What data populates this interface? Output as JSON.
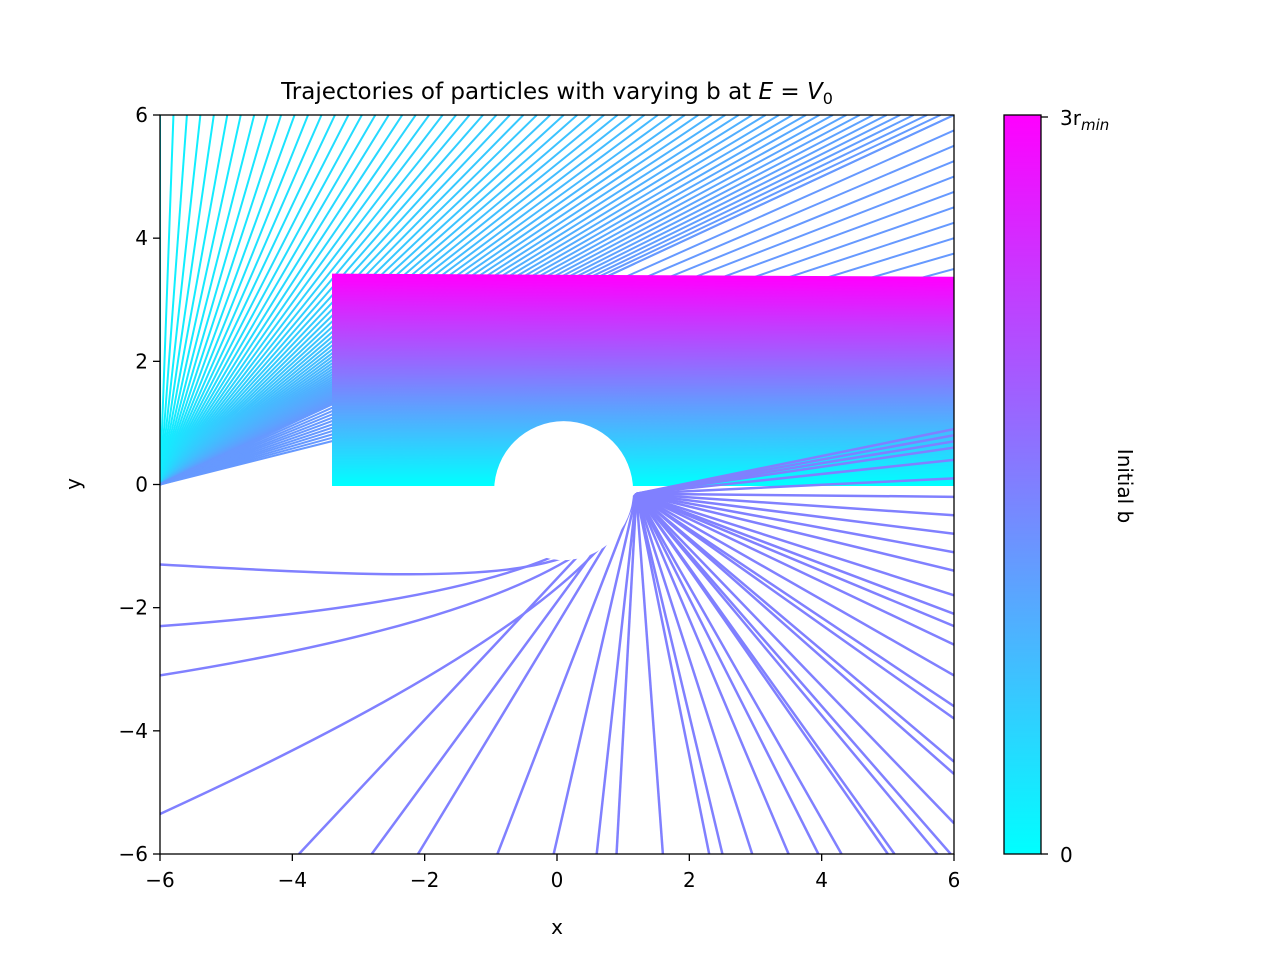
{
  "chart_data": {
    "type": "line",
    "title": "Trajectories of particles with varying b at E = V₀",
    "title_main": "Trajectories of particles with varying b at ",
    "title_math_E": "E",
    "title_math_eq": " = ",
    "title_math_V": "V",
    "title_math_sub": "0",
    "xlabel": "x",
    "ylabel": "y",
    "xlim": [
      -6,
      6
    ],
    "ylim": [
      -6,
      6
    ],
    "xticks": [
      -6,
      -4,
      -2,
      0,
      2,
      4,
      6
    ],
    "yticks": [
      -6,
      -4,
      -2,
      0,
      2,
      4,
      6
    ],
    "xtick_labels": [
      "−6",
      "−4",
      "−2",
      "0",
      "2",
      "4",
      "6"
    ],
    "ytick_labels": [
      "−6",
      "−4",
      "−2",
      "0",
      "2",
      "4",
      "6"
    ],
    "grid": false,
    "colormap": "cool",
    "colormap_colors": [
      "#00ffff",
      "#ff00ff"
    ],
    "colorbar": {
      "label": "Initial b",
      "min_label": "0",
      "max_label_main": "3r",
      "max_label_sub": "min",
      "range": [
        0,
        3.4
      ]
    },
    "incoming_region": {
      "x_start": -3.4,
      "x_end": 6,
      "b_min": 0,
      "b_max": 3.4,
      "bend_points": [
        [
          -1.0,
          0
        ],
        [
          1.4,
          3.35
        ]
      ]
    },
    "obstacle": {
      "center": [
        0.1,
        -0.1
      ],
      "radius": 1.05
    },
    "fan_center": [
      1.2,
      -0.15
    ],
    "upper_fan": {
      "origin": [
        -6,
        0
      ],
      "count": 60,
      "target_y": 6,
      "target_x_range": [
        -6,
        6
      ]
    },
    "lower_trajectories": {
      "curved": [
        {
          "y_left": -1.3
        },
        {
          "y_left": -2.3
        },
        {
          "y_left": -3.1
        },
        {
          "y_left": -5.35
        }
      ],
      "fan_bottom_x": [
        -3.9,
        -2.8,
        -2.1,
        -0.9,
        -0.05,
        0.6,
        0.9,
        1.6,
        2.3,
        2.5,
        2.95,
        3.5,
        3.95,
        4.3,
        5.0,
        5.1,
        5.75,
        5.95
      ],
      "fan_right_y": [
        -5.5,
        -4.7,
        -4.5,
        -3.8,
        -3.6,
        -3.1,
        -2.6,
        -2.3,
        -2.1,
        -1.8,
        -1.4,
        -1.1,
        -0.8,
        -0.5,
        -0.2,
        0.1,
        0.4,
        0.6,
        0.7,
        0.8,
        0.9
      ]
    }
  }
}
